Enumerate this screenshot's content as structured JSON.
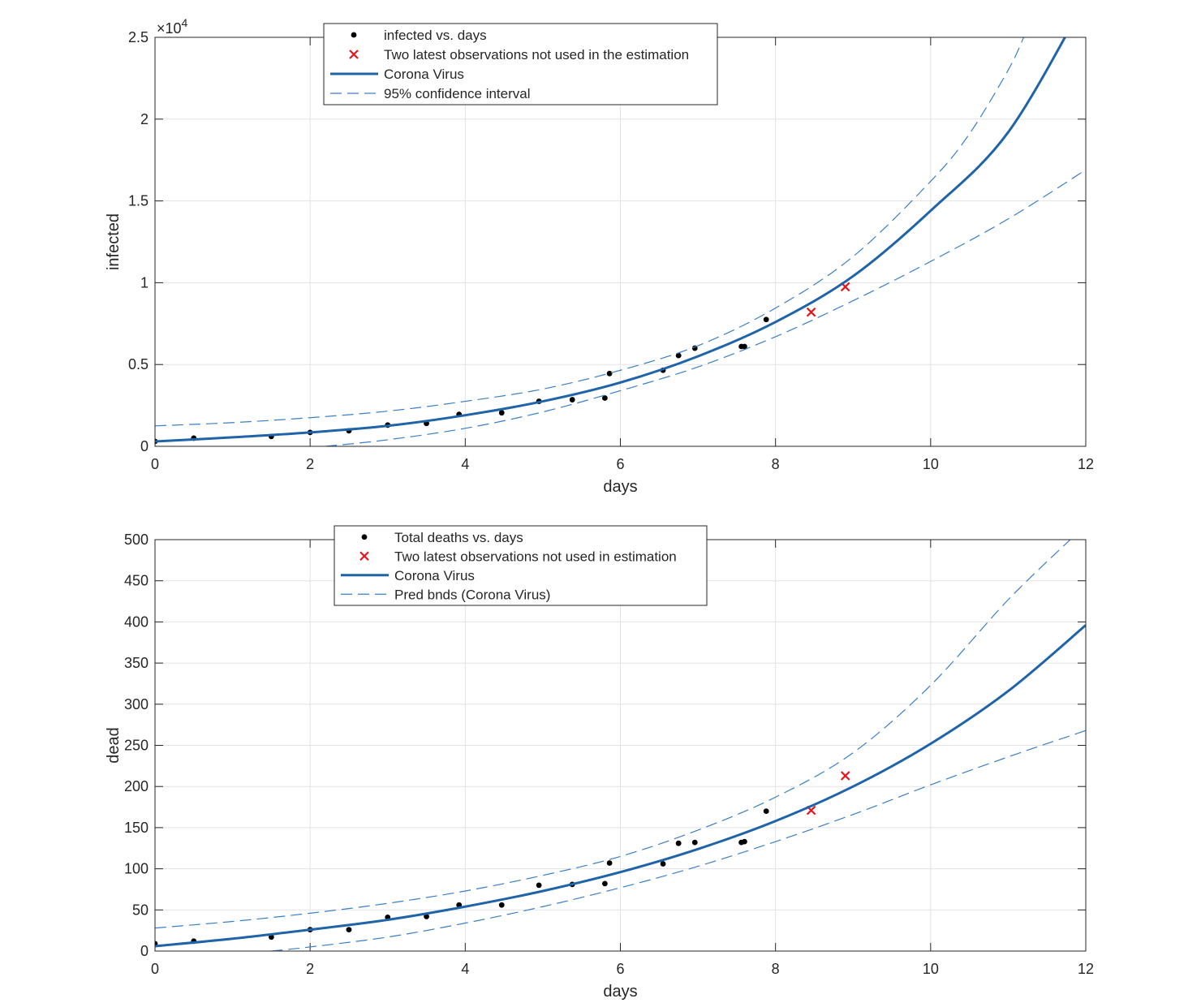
{
  "chart_data": [
    {
      "type": "scatter",
      "xlabel": "days",
      "ylabel": "infected",
      "xlim": [
        0,
        12
      ],
      "ylim": [
        0,
        25000
      ],
      "xticks": [
        0,
        2,
        4,
        6,
        8,
        10,
        12
      ],
      "yticks": [
        0,
        5000,
        10000,
        15000,
        20000,
        25000
      ],
      "ytick_labels": [
        "0",
        "0.5",
        "1",
        "1.5",
        "2",
        "2.5"
      ],
      "y_exponent_base": "×10",
      "y_exponent_power": "4",
      "grid": true,
      "legend_position": "top-center",
      "legend": {
        "observed": "infected vs. days",
        "excluded": "Two latest observations not used in the estimation",
        "fit": "Corona Virus",
        "bounds": "95% confidence interval"
      },
      "series": [
        {
          "name": "infected vs. days",
          "kind": "points",
          "x": [
            0,
            0.5,
            1.5,
            2,
            2.5,
            3,
            3.5,
            3.92,
            4.47,
            4.95,
            5.38,
            5.8,
            5.86,
            6.55,
            6.75,
            6.96,
            7.56,
            7.6,
            7.88
          ],
          "y": [
            300,
            500,
            600,
            850,
            950,
            1300,
            1400,
            1950,
            2050,
            2750,
            2850,
            2950,
            4450,
            4650,
            5550,
            6000,
            6100,
            6100,
            7750
          ]
        },
        {
          "name": "Two latest observations not used in the estimation",
          "kind": "crosses",
          "x": [
            8.46,
            8.9
          ],
          "y": [
            8200,
            9750
          ]
        },
        {
          "name": "Corona Virus",
          "kind": "fit",
          "x": [
            0,
            1,
            2,
            3,
            4,
            5,
            6,
            7,
            8,
            9,
            10,
            11,
            12
          ],
          "y": [
            300,
            550,
            850,
            1250,
            1900,
            2750,
            3900,
            5500,
            7600,
            10400,
            14400,
            19200,
            27300
          ]
        },
        {
          "name": "95% confidence interval",
          "kind": "upper",
          "x": [
            0,
            1,
            2,
            3,
            4,
            5,
            6,
            7,
            8,
            9,
            10,
            10.5,
            11,
            11.2
          ],
          "y": [
            1250,
            1450,
            1750,
            2150,
            2750,
            3500,
            4650,
            6150,
            8450,
            11600,
            16200,
            19100,
            23000,
            25000
          ]
        },
        {
          "name": "95% confidence interval",
          "kind": "lower",
          "x": [
            2.2,
            3,
            4,
            5,
            6,
            7,
            8,
            9,
            10,
            11,
            12
          ],
          "y": [
            0,
            400,
            1100,
            2100,
            3400,
            4850,
            6700,
            8900,
            11300,
            13900,
            16900
          ]
        }
      ]
    },
    {
      "type": "scatter",
      "xlabel": "days",
      "ylabel": "dead",
      "xlim": [
        0,
        12
      ],
      "ylim": [
        0,
        500
      ],
      "xticks": [
        0,
        2,
        4,
        6,
        8,
        10,
        12
      ],
      "yticks": [
        0,
        50,
        100,
        150,
        200,
        250,
        300,
        350,
        400,
        450,
        500
      ],
      "ytick_labels": [
        "0",
        "50",
        "100",
        "150",
        "200",
        "250",
        "300",
        "350",
        "400",
        "450",
        "500"
      ],
      "grid": true,
      "legend_position": "top-center",
      "legend": {
        "observed": "Total deaths vs. days",
        "excluded": "Two latest observations not used in estimation",
        "fit": "Corona Virus",
        "bounds": "Pred bnds (Corona Virus)"
      },
      "series": [
        {
          "name": "Total deaths vs. days",
          "kind": "points",
          "x": [
            0,
            0.5,
            1.5,
            2,
            2.5,
            3,
            3.5,
            3.92,
            4.47,
            4.95,
            5.38,
            5.8,
            5.86,
            6.55,
            6.75,
            6.96,
            7.56,
            7.6,
            7.88
          ],
          "y": [
            9,
            12,
            17,
            26,
            26,
            41,
            42,
            56,
            56,
            80,
            81,
            82,
            107,
            106,
            131,
            132,
            132,
            133,
            170
          ]
        },
        {
          "name": "Two latest observations not used in estimation",
          "kind": "crosses",
          "x": [
            8.46,
            8.9
          ],
          "y": [
            171,
            213
          ]
        },
        {
          "name": "Corona Virus",
          "kind": "fit",
          "x": [
            0,
            1,
            2,
            3,
            4,
            5,
            6,
            7,
            8,
            9,
            10,
            11,
            12
          ],
          "y": [
            6,
            15,
            26,
            38,
            54,
            73,
            96,
            124,
            158,
            200,
            252,
            316,
            396
          ]
        },
        {
          "name": "Pred bnds (Corona Virus)",
          "kind": "upper",
          "x": [
            0,
            1,
            2,
            3,
            4,
            5,
            6,
            7,
            8,
            9,
            10,
            11,
            11.8
          ],
          "y": [
            28,
            36,
            46,
            58,
            73,
            92,
            115,
            147,
            187,
            241,
            323,
            427,
            500
          ]
        },
        {
          "name": "Pred bnds (Corona Virus)",
          "kind": "lower",
          "x": [
            1.5,
            2,
            3,
            4,
            5,
            6,
            7,
            8,
            9,
            10,
            11,
            12
          ],
          "y": [
            0,
            5,
            17,
            34,
            54,
            77,
            103,
            133,
            166,
            202,
            236,
            268
          ]
        }
      ]
    }
  ]
}
